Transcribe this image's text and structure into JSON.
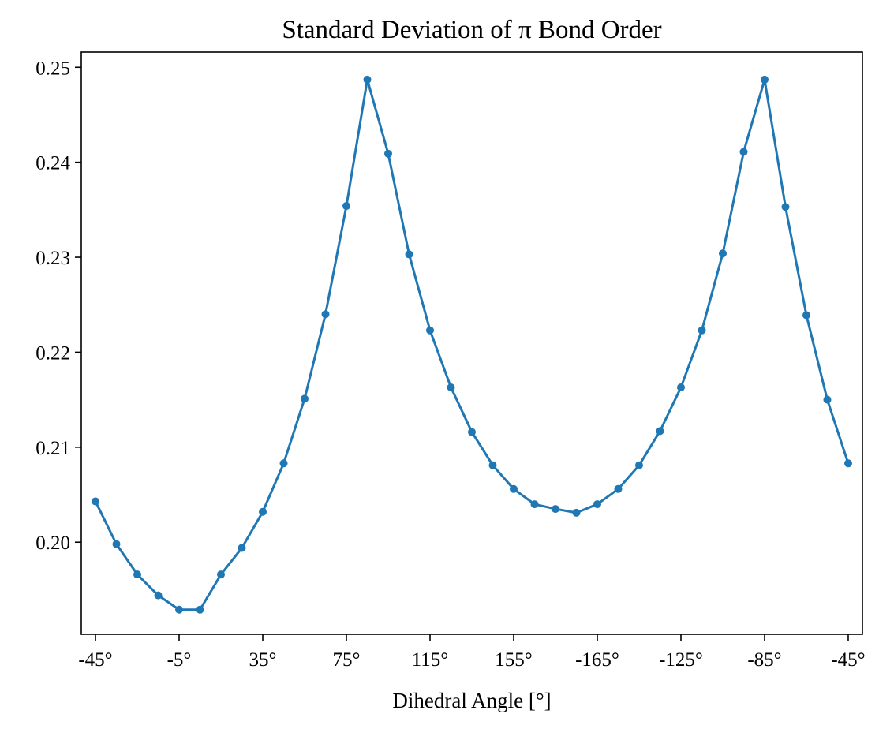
{
  "chart_data": {
    "type": "line",
    "title": "Standard Deviation of π Bond Order",
    "xlabel": "Dihedral Angle [°]",
    "ylabel": "",
    "x_tick_labels": [
      "-45°",
      "-5°",
      "35°",
      "75°",
      "115°",
      "155°",
      "-165°",
      "-125°",
      "-85°",
      "-45°"
    ],
    "y_ticks": [
      0.2,
      0.21,
      0.22,
      0.23,
      0.24,
      0.25
    ],
    "y_tick_labels": [
      "0.20",
      "0.21",
      "0.22",
      "0.23",
      "0.24",
      "0.25"
    ],
    "ylim": [
      0.1903,
      0.2516
    ],
    "xlim": [
      -51.8,
      321.8
    ],
    "grid": false,
    "legend": "none",
    "series": [
      {
        "color": "#1f77b4",
        "marker": "circle",
        "x": [
          -45,
          -35,
          -25,
          -15,
          -5,
          5,
          15,
          25,
          35,
          45,
          55,
          65,
          75,
          85,
          95,
          105,
          115,
          125,
          135,
          145,
          155,
          165,
          175,
          185,
          195,
          205,
          215,
          225,
          235,
          245,
          255,
          265,
          275,
          285,
          295,
          305,
          315
        ],
        "x_note": "",
        "values": [
          0.2043,
          0.1998,
          0.1966,
          0.1944,
          0.1929,
          0.1929,
          0.1966,
          0.1994,
          0.2032,
          0.2083,
          0.2151,
          0.224,
          0.2354,
          0.2487,
          0.2409,
          0.2303,
          0.2223,
          0.2163,
          0.2116,
          0.2081,
          0.2056,
          0.204,
          0.2035,
          0.2031,
          0.204,
          0.2056,
          0.2081,
          0.2117,
          0.2163,
          0.2223,
          0.2304,
          0.2411,
          0.2487,
          0.2353,
          0.2239,
          0.215,
          0.2083
        ]
      }
    ]
  }
}
